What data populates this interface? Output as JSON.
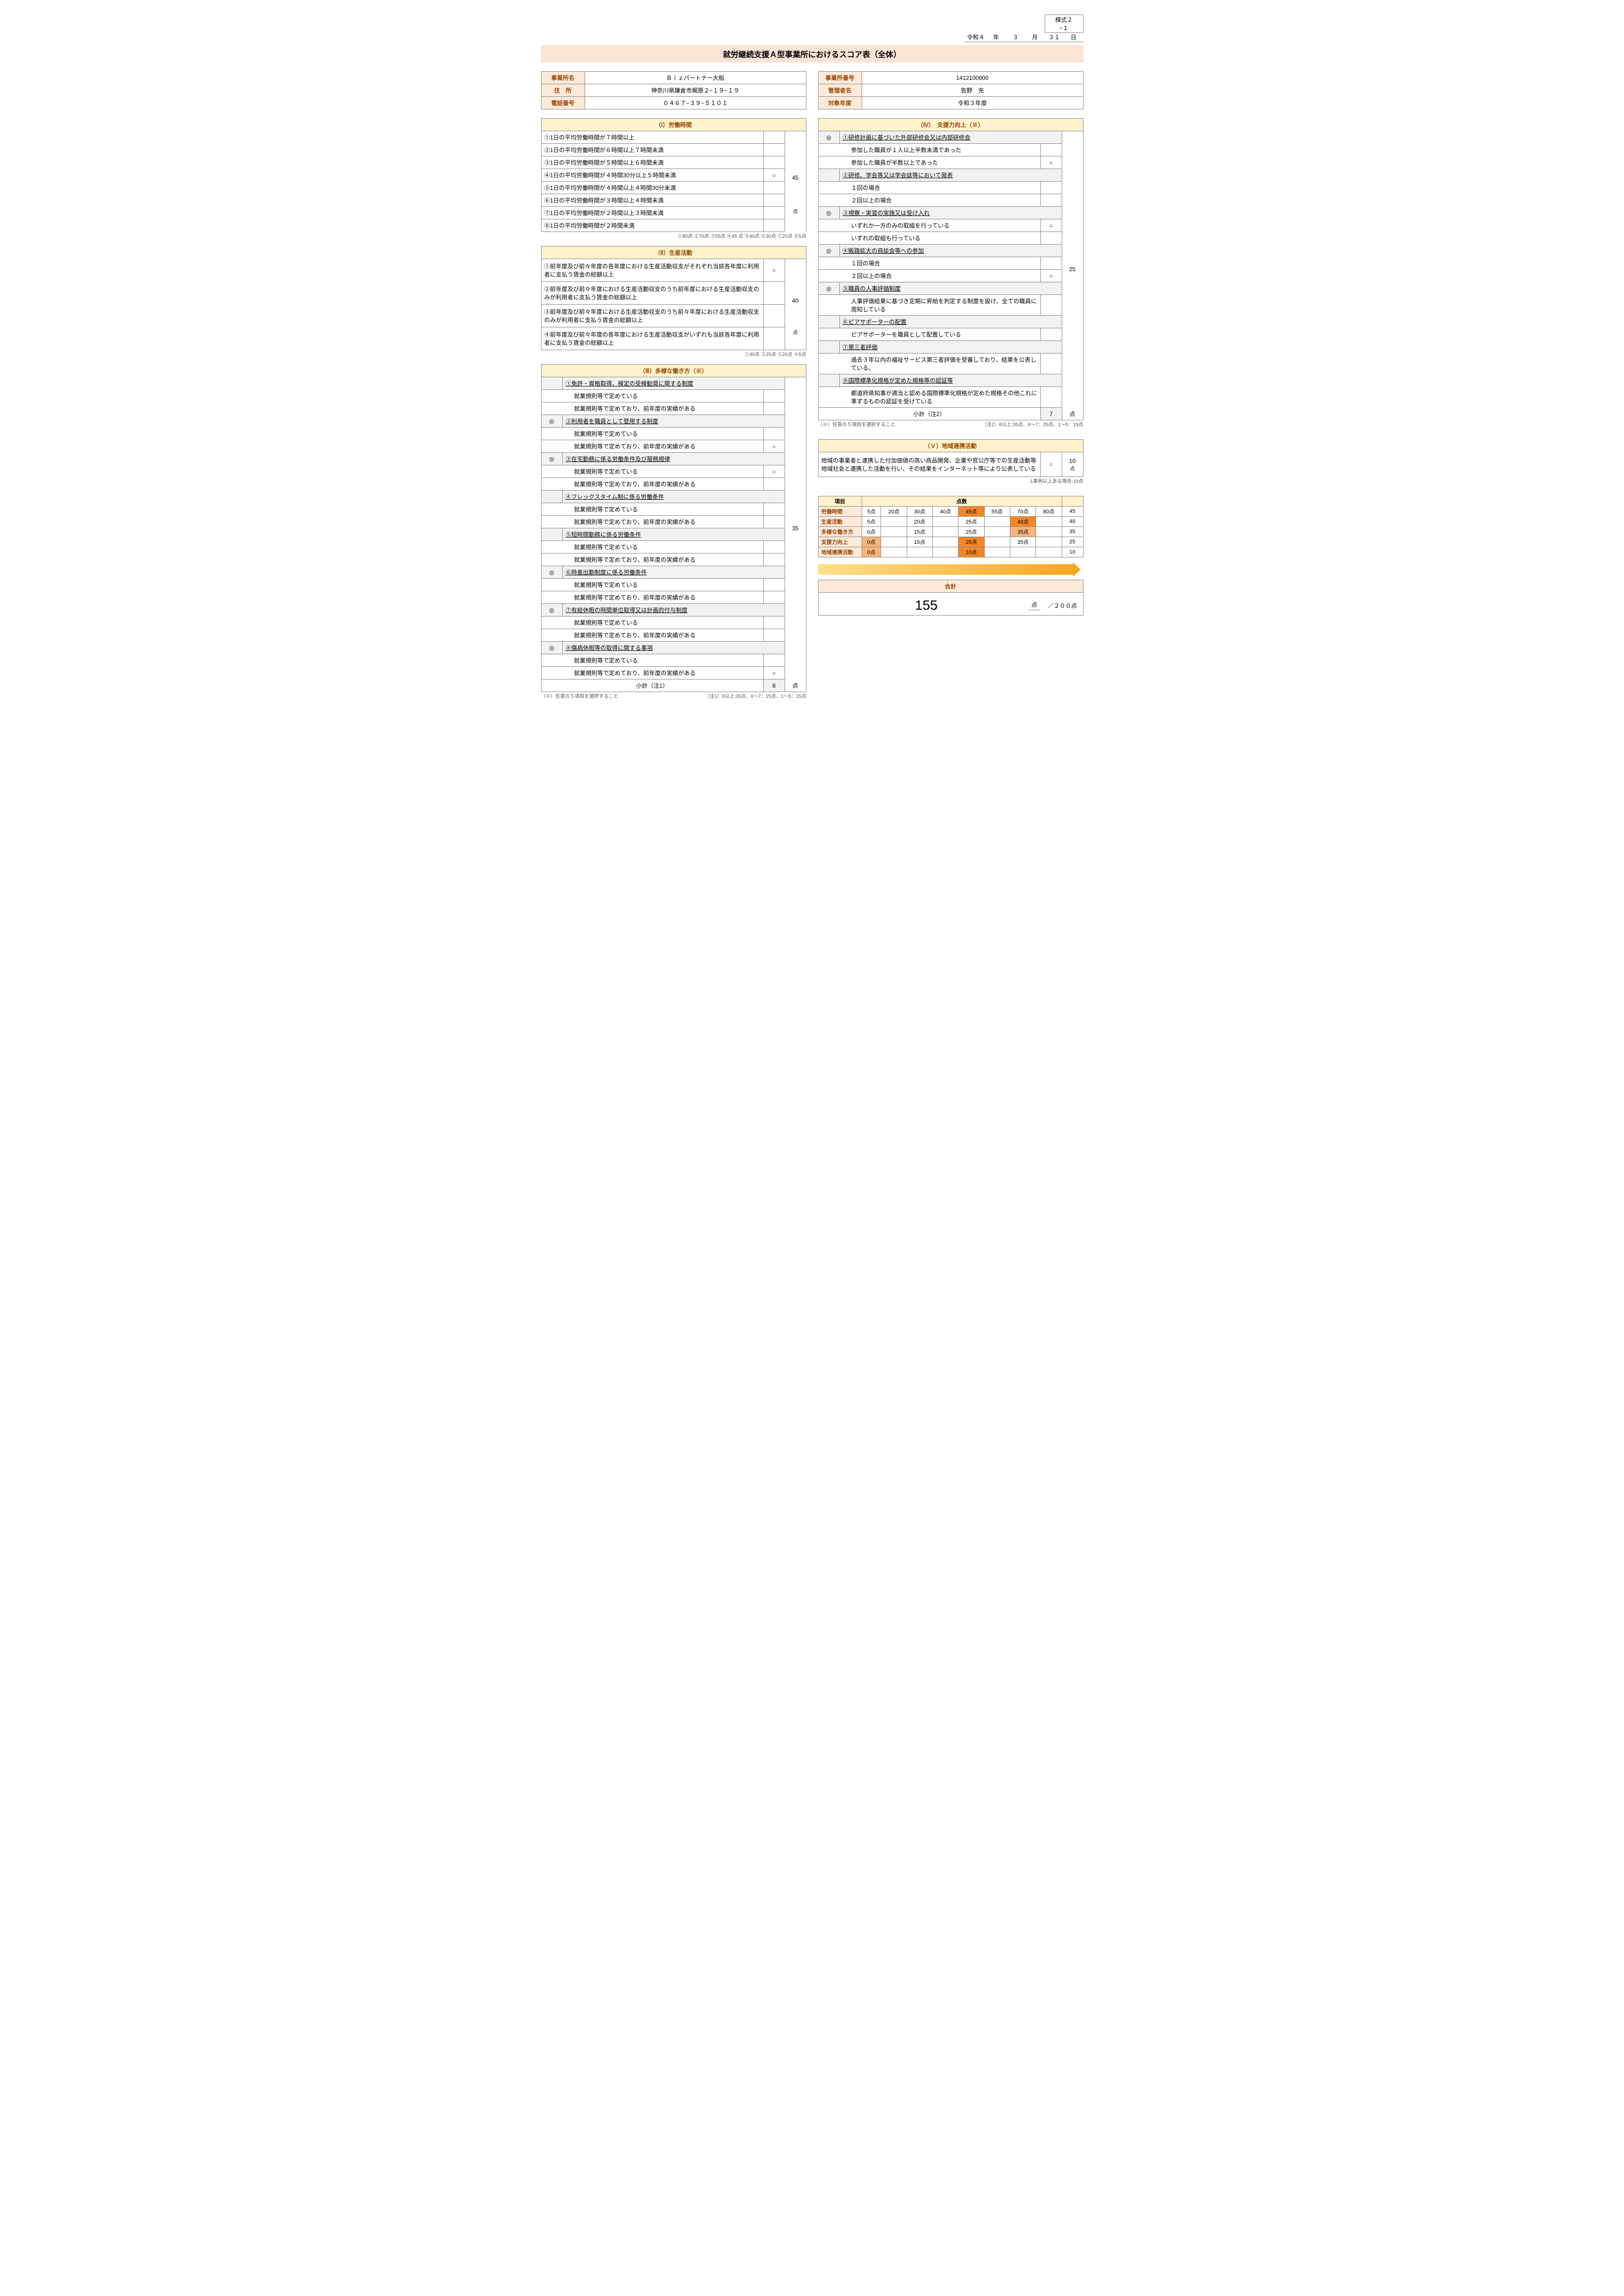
{
  "form_id": "様式２−１",
  "date": {
    "era": "令和４",
    "year": "",
    "month": "３",
    "day": "３１"
  },
  "title": "就労継続支援Ａ型事業所におけるスコア表（全体）",
  "info_left": {
    "name_h": "事業所名",
    "name_v": "Ｂｉｚパートナー大船",
    "addr_h": "住　所",
    "addr_v": "神奈川県鎌倉市梶原２−１９−１９",
    "tel_h": "電話番号",
    "tel_v": "０４６７−３９−５１０１"
  },
  "info_right": {
    "no_h": "事業所番号",
    "no_v": "1412100800",
    "mgr_h": "管理者名",
    "mgr_v": "告野　充",
    "yr_h": "対象年度",
    "yr_v": "令和３年度"
  },
  "sec1": {
    "title": "（Ⅰ）労働時間",
    "rows": [
      {
        "t": "①1日の平均労働時間が７時間以上"
      },
      {
        "t": "②1日の平均労働時間が６時間以上７時間未満"
      },
      {
        "t": "③1日の平均労働時間が５時間以上６時間未満"
      },
      {
        "t": "④1日の平均労働時間が４時間30分以上５時間未満",
        "c": "○"
      },
      {
        "t": "⑤1日の平均労働時間が４時間以上４時間30分未満"
      },
      {
        "t": "⑥1日の平均労働時間が３時間以上４時間未満"
      },
      {
        "t": "⑦1日の平均労働時間が２時間以上３時間未満"
      },
      {
        "t": "⑧1日の平均労働時間が２時間未満"
      }
    ],
    "score": "45",
    "foot": "①80点 ②70点 ③55点 ④45 点 ⑤40点 ⑥30点 ⑦20点 ⑧5点"
  },
  "sec2": {
    "title": "（Ⅱ）生産活動",
    "rows": [
      {
        "t": "①前年度及び前々年度の各年度における生産活動収支がそれぞれ当該各年度に利用者に支払う賃金の総額以上",
        "c": "○"
      },
      {
        "t": "②前年度及び前々年度における生産活動収支のうち前年度における生産活動収支のみが利用者に支払う賃金の総額以上"
      },
      {
        "t": "③前年度及び前々年度における生産活動収支のうち前々年度における生産活動収支のみが利用者に支払う賃金の総額以上"
      },
      {
        "t": "④前年度及び前々年度の各年度における生産活動収支がいずれも当該各年度に利用者に支払う賃金の総額以上"
      }
    ],
    "score": "40",
    "foot": "①40点 ②25点 ③20点 ④5点"
  },
  "sec3": {
    "title": "（Ⅲ）多様な働き方（※）",
    "groups": [
      {
        "m": "",
        "h": "①免許・資格取得、検定の受検勧奨に関する制度",
        "r": [
          {
            "t": "就業規則等で定めている"
          },
          {
            "t": "就業規則等で定めており、前年度の実績がある"
          }
        ]
      },
      {
        "m": "◎",
        "h": "②利用者を職員として登用する制度",
        "r": [
          {
            "t": "就業規則等で定めている"
          },
          {
            "t": "就業規則等で定めており、前年度の実績がある",
            "c": "○"
          }
        ]
      },
      {
        "m": "◎",
        "h": "③在宅勤務に係る労働条件及び服務規律",
        "r": [
          {
            "t": "就業規則等で定めている",
            "c": "○"
          },
          {
            "t": "就業規則等で定めており、前年度の実績がある"
          }
        ]
      },
      {
        "m": "",
        "h": "④フレックスタイム制に係る労働条件",
        "r": [
          {
            "t": "就業規則等で定めている"
          },
          {
            "t": "就業規則等で定めており、前年度の実績がある"
          }
        ]
      },
      {
        "m": "",
        "h": "⑤短時間勤務に係る労働条件",
        "r": [
          {
            "t": "就業規則等で定めている"
          },
          {
            "t": "就業規則等で定めており、前年度の実績がある"
          }
        ]
      },
      {
        "m": "◎",
        "h": "⑥時差出勤制度に係る労働条件",
        "r": [
          {
            "t": "就業規則等で定めている"
          },
          {
            "t": "就業規則等で定めており、前年度の実績がある"
          }
        ]
      },
      {
        "m": "◎",
        "h": "⑦有給休暇の時間単位取得又は計画的付与制度",
        "r": [
          {
            "t": "就業規則等で定めている"
          },
          {
            "t": "就業規則等で定めており、前年度の実績がある"
          }
        ]
      },
      {
        "m": "◎",
        "h": "⑧傷病休暇等の取得に関する事項",
        "r": [
          {
            "t": "就業規則等で定めている"
          },
          {
            "t": "就業規則等で定めており、前年度の実績がある",
            "c": "○"
          }
        ]
      }
    ],
    "subtotal_label": "小計（注1）",
    "subtotal": "8",
    "score": "35",
    "foot_l": "（※）任意の５項目を選択すること",
    "foot_r": "（注1）8以上:35点、6～7：25点、1～5：15点"
  },
  "sec4": {
    "title": "（Ⅳ）　支援力向上（※）",
    "groups": [
      {
        "m": "◎",
        "h": "①研修計画に基づいた外部研修会又は内部研修会",
        "r": [
          {
            "t": "参加した職員が１人以上半数未満であった"
          },
          {
            "t": "参加した職員が半数以上であった",
            "c": "○"
          }
        ]
      },
      {
        "m": "",
        "h": "②研修、学会等又は学会誌等において発表",
        "r": [
          {
            "t": "１回の場合"
          },
          {
            "t": "２回以上の場合"
          }
        ]
      },
      {
        "m": "◎",
        "h": "③視察・実習の実施又は受け入れ",
        "r": [
          {
            "t": "いずれか一方のみの取組を行っている",
            "c": "○"
          },
          {
            "t": "いずれの取組も行っている"
          }
        ]
      },
      {
        "m": "◎",
        "h": "④販路拡大の商談会等への参加",
        "r": [
          {
            "t": "１回の場合"
          },
          {
            "t": "２回以上の場合",
            "c": "○"
          }
        ]
      },
      {
        "m": "◎",
        "h": "⑤職員の人事評価制度",
        "r": [
          {
            "t": "人事評価結果に基づき定期に昇給を判定する制度を設け、全ての職員に周知している"
          }
        ]
      },
      {
        "m": "",
        "h": "⑥ピアサポーターの配置",
        "r": [
          {
            "t": "ピアサポーターを職員として配置している"
          }
        ]
      },
      {
        "m": "",
        "h": "⑦第三者評価",
        "r": [
          {
            "t": "過去３年以内の福祉サービス第三者評価を受審しており、結果を公表している。"
          }
        ]
      },
      {
        "m": "",
        "h": "⑧国際標準化規格が定めた規格等の認証等",
        "r": [
          {
            "t": "都道府県知事が適当と認める国際標準化規格が定めた規格その他これに準ずるものの認証を受けている"
          }
        ]
      }
    ],
    "subtotal_label": "小計（注2）",
    "subtotal": "7",
    "score": "25",
    "foot_l": "（※）任意の５項目を選択すること",
    "foot_r": "（注2）8以上:35点、6～7：25点、1～5：15点"
  },
  "sec5": {
    "title": "（Ｖ）地域連携活動",
    "body": "地域の事業者と連携した付加価値の高い商品開発、企業や官公庁等での生産活動等地域社会と連携した活動を行い、その結果をインターネット等により公表している",
    "c": "○",
    "score": "10",
    "unit": "点",
    "foot": "1事例以上ある場合:10点"
  },
  "summary": {
    "col_head": [
      "項目",
      "点数"
    ],
    "rows": [
      {
        "h": "労働時間",
        "cells": [
          "5点",
          "20点",
          "30点",
          "40点",
          "45点",
          "55点",
          "70点",
          "80点"
        ],
        "hl": 4,
        "val": "45"
      },
      {
        "h": "生産活動",
        "cells": [
          "5点",
          "",
          "20点",
          "",
          "25点",
          "",
          "40点",
          ""
        ],
        "hl": 6,
        "val": "40"
      },
      {
        "h": "多様な働き方",
        "cells": [
          "0点",
          "",
          "15点",
          "",
          "25点",
          "",
          "35点",
          ""
        ],
        "hl": 6,
        "hl2": true,
        "val": "35"
      },
      {
        "h": "支援力向上",
        "cells": [
          "0点",
          "",
          "15点",
          "",
          "25点",
          "",
          "35点",
          ""
        ],
        "hl": 4,
        "hl0": true,
        "val": "25"
      },
      {
        "h": "地域連携活動",
        "cells": [
          "0点",
          "",
          "",
          "",
          "10点",
          "",
          "",
          ""
        ],
        "hl": 4,
        "hl0": true,
        "val": "10"
      }
    ]
  },
  "total": {
    "label": "合計",
    "value": "155",
    "unit": "点",
    "denom": "／２００点"
  },
  "pt": "点"
}
